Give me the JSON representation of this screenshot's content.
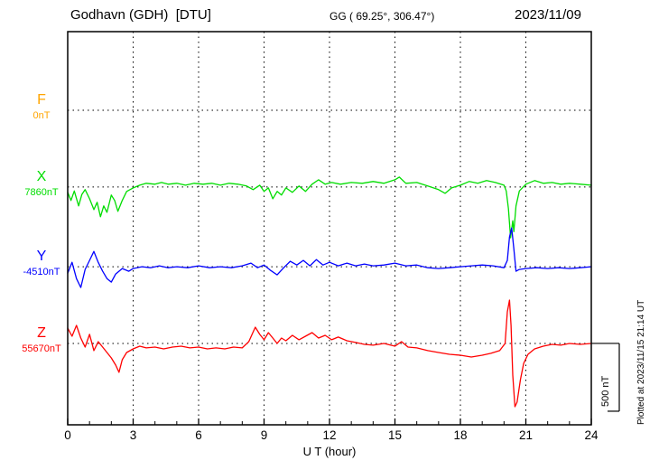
{
  "header": {
    "station": "Godhavn (GDH)  [DTU]",
    "coords": "GG ( 69.25°, 306.47°)",
    "date": "2023/11/09"
  },
  "side_note": "Plotted at 2023/11/15 21:14 UT",
  "chart_data": {
    "type": "line",
    "title": "Godhavn (GDH) [DTU] magnetogram 2023/11/09",
    "xlabel": "U T (hour)",
    "ylabel": "",
    "xlim": [
      0,
      24
    ],
    "xticks": [
      0,
      3,
      6,
      9,
      12,
      15,
      18,
      21,
      24
    ],
    "grid": {
      "vertical_dotted_every_hours": 3,
      "horizontal_dotted": "component baselines"
    },
    "scale_bar": {
      "label": "500 nT",
      "nT": 500
    },
    "axis_color": "#000000",
    "units": "points are [hour UT, offset from baseline in nT]",
    "series": [
      {
        "name": "F",
        "color": "#ffa500",
        "baseline_label": "0nT",
        "baseline_value_nT": 0,
        "baseline_frac": 0.2,
        "points": []
      },
      {
        "name": "X",
        "color": "#00dd00",
        "baseline_label": "7860nT",
        "baseline_value_nT": 7860,
        "baseline_frac": 0.395,
        "points": [
          [
            0,
            -40
          ],
          [
            0.15,
            -100
          ],
          [
            0.3,
            -30
          ],
          [
            0.5,
            -140
          ],
          [
            0.65,
            -55
          ],
          [
            0.8,
            -20
          ],
          [
            1.0,
            -87
          ],
          [
            1.2,
            -167
          ],
          [
            1.35,
            -113
          ],
          [
            1.5,
            -220
          ],
          [
            1.65,
            -140
          ],
          [
            1.8,
            -187
          ],
          [
            2.0,
            -60
          ],
          [
            2.15,
            -100
          ],
          [
            2.3,
            -180
          ],
          [
            2.5,
            -100
          ],
          [
            2.7,
            -33
          ],
          [
            3.0,
            -7
          ],
          [
            3.3,
            13
          ],
          [
            3.6,
            27
          ],
          [
            4.0,
            20
          ],
          [
            4.3,
            33
          ],
          [
            4.6,
            20
          ],
          [
            5.0,
            27
          ],
          [
            5.4,
            13
          ],
          [
            5.8,
            27
          ],
          [
            6.2,
            20
          ],
          [
            6.6,
            27
          ],
          [
            7.0,
            13
          ],
          [
            7.4,
            27
          ],
          [
            7.8,
            20
          ],
          [
            8.2,
            7
          ],
          [
            8.5,
            -20
          ],
          [
            8.8,
            13
          ],
          [
            9.0,
            -33
          ],
          [
            9.2,
            -7
          ],
          [
            9.4,
            -87
          ],
          [
            9.6,
            -33
          ],
          [
            9.8,
            -60
          ],
          [
            10.0,
            -7
          ],
          [
            10.3,
            -40
          ],
          [
            10.6,
            7
          ],
          [
            10.9,
            -33
          ],
          [
            11.2,
            20
          ],
          [
            11.5,
            53
          ],
          [
            11.8,
            20
          ],
          [
            12.1,
            33
          ],
          [
            12.5,
            20
          ],
          [
            13.0,
            33
          ],
          [
            13.5,
            27
          ],
          [
            14.0,
            40
          ],
          [
            14.5,
            27
          ],
          [
            15.0,
            53
          ],
          [
            15.2,
            73
          ],
          [
            15.5,
            27
          ],
          [
            16.0,
            33
          ],
          [
            16.5,
            7
          ],
          [
            17.0,
            -20
          ],
          [
            17.3,
            -47
          ],
          [
            17.6,
            -7
          ],
          [
            18.0,
            13
          ],
          [
            18.4,
            40
          ],
          [
            18.8,
            27
          ],
          [
            19.2,
            47
          ],
          [
            19.6,
            33
          ],
          [
            20.0,
            13
          ],
          [
            20.1,
            -30
          ],
          [
            20.2,
            -160
          ],
          [
            20.3,
            -375
          ],
          [
            20.4,
            -250
          ],
          [
            20.45,
            -330
          ],
          [
            20.55,
            -140
          ],
          [
            20.7,
            -30
          ],
          [
            21.0,
            20
          ],
          [
            21.4,
            47
          ],
          [
            21.8,
            27
          ],
          [
            22.2,
            33
          ],
          [
            22.6,
            20
          ],
          [
            23.0,
            27
          ],
          [
            23.5,
            20
          ],
          [
            24.0,
            13
          ]
        ]
      },
      {
        "name": "Y",
        "color": "#0000ff",
        "baseline_label": "-4510nT",
        "baseline_value_nT": -4510,
        "baseline_frac": 0.598,
        "points": [
          [
            0,
            -47
          ],
          [
            0.2,
            33
          ],
          [
            0.4,
            -87
          ],
          [
            0.6,
            -153
          ],
          [
            0.8,
            -20
          ],
          [
            1.0,
            47
          ],
          [
            1.2,
            113
          ],
          [
            1.4,
            33
          ],
          [
            1.6,
            -33
          ],
          [
            1.8,
            -87
          ],
          [
            2.0,
            -113
          ],
          [
            2.2,
            -53
          ],
          [
            2.5,
            -13
          ],
          [
            2.8,
            -33
          ],
          [
            3.0,
            -13
          ],
          [
            3.4,
            0
          ],
          [
            3.8,
            -7
          ],
          [
            4.2,
            7
          ],
          [
            4.6,
            -7
          ],
          [
            5.0,
            0
          ],
          [
            5.5,
            -7
          ],
          [
            6.0,
            7
          ],
          [
            6.5,
            -7
          ],
          [
            7.0,
            0
          ],
          [
            7.5,
            -7
          ],
          [
            8.0,
            7
          ],
          [
            8.4,
            27
          ],
          [
            8.7,
            -7
          ],
          [
            9.0,
            13
          ],
          [
            9.3,
            -27
          ],
          [
            9.6,
            -60
          ],
          [
            9.9,
            -7
          ],
          [
            10.2,
            40
          ],
          [
            10.5,
            13
          ],
          [
            10.8,
            47
          ],
          [
            11.1,
            7
          ],
          [
            11.4,
            53
          ],
          [
            11.7,
            13
          ],
          [
            12.0,
            33
          ],
          [
            12.4,
            7
          ],
          [
            12.8,
            27
          ],
          [
            13.2,
            7
          ],
          [
            13.6,
            20
          ],
          [
            14.0,
            7
          ],
          [
            14.5,
            13
          ],
          [
            15.0,
            27
          ],
          [
            15.5,
            7
          ],
          [
            16.0,
            13
          ],
          [
            16.5,
            -7
          ],
          [
            17.0,
            -13
          ],
          [
            17.5,
            -7
          ],
          [
            18.0,
            0
          ],
          [
            18.5,
            7
          ],
          [
            19.0,
            13
          ],
          [
            19.5,
            7
          ],
          [
            20.0,
            -7
          ],
          [
            20.15,
            47
          ],
          [
            20.25,
            220
          ],
          [
            20.35,
            287
          ],
          [
            20.45,
            133
          ],
          [
            20.55,
            -33
          ],
          [
            20.7,
            -20
          ],
          [
            21.0,
            -13
          ],
          [
            21.5,
            -7
          ],
          [
            22.0,
            -13
          ],
          [
            22.5,
            -7
          ],
          [
            23.0,
            -13
          ],
          [
            23.5,
            -7
          ],
          [
            24.0,
            0
          ]
        ]
      },
      {
        "name": "Z",
        "color": "#ff0000",
        "baseline_label": "55670nT",
        "baseline_value_nT": 55670,
        "baseline_frac": 0.793,
        "points": [
          [
            0,
            113
          ],
          [
            0.2,
            53
          ],
          [
            0.4,
            133
          ],
          [
            0.6,
            40
          ],
          [
            0.8,
            -27
          ],
          [
            1.0,
            67
          ],
          [
            1.2,
            -53
          ],
          [
            1.4,
            13
          ],
          [
            1.6,
            -27
          ],
          [
            1.8,
            -67
          ],
          [
            2.0,
            -107
          ],
          [
            2.2,
            -160
          ],
          [
            2.35,
            -213
          ],
          [
            2.5,
            -120
          ],
          [
            2.7,
            -67
          ],
          [
            3.0,
            -40
          ],
          [
            3.3,
            -20
          ],
          [
            3.6,
            -33
          ],
          [
            4.0,
            -27
          ],
          [
            4.4,
            -40
          ],
          [
            4.8,
            -27
          ],
          [
            5.2,
            -20
          ],
          [
            5.6,
            -33
          ],
          [
            6.0,
            -27
          ],
          [
            6.4,
            -40
          ],
          [
            6.8,
            -33
          ],
          [
            7.2,
            -40
          ],
          [
            7.6,
            -27
          ],
          [
            8.0,
            -33
          ],
          [
            8.3,
            13
          ],
          [
            8.6,
            120
          ],
          [
            8.8,
            67
          ],
          [
            9.0,
            27
          ],
          [
            9.2,
            80
          ],
          [
            9.4,
            40
          ],
          [
            9.6,
            0
          ],
          [
            9.8,
            40
          ],
          [
            10.0,
            20
          ],
          [
            10.3,
            60
          ],
          [
            10.6,
            27
          ],
          [
            10.9,
            53
          ],
          [
            11.2,
            80
          ],
          [
            11.5,
            40
          ],
          [
            11.8,
            60
          ],
          [
            12.1,
            27
          ],
          [
            12.4,
            47
          ],
          [
            12.8,
            20
          ],
          [
            13.2,
            7
          ],
          [
            13.6,
            -7
          ],
          [
            14.0,
            -13
          ],
          [
            14.5,
            0
          ],
          [
            15.0,
            -20
          ],
          [
            15.3,
            13
          ],
          [
            15.6,
            -27
          ],
          [
            16.0,
            -33
          ],
          [
            16.5,
            -53
          ],
          [
            17.0,
            -67
          ],
          [
            17.5,
            -80
          ],
          [
            18.0,
            -87
          ],
          [
            18.5,
            -100
          ],
          [
            19.0,
            -87
          ],
          [
            19.4,
            -73
          ],
          [
            19.8,
            -53
          ],
          [
            20.05,
            0
          ],
          [
            20.15,
            233
          ],
          [
            20.25,
            320
          ],
          [
            20.32,
            133
          ],
          [
            20.4,
            -233
          ],
          [
            20.5,
            -467
          ],
          [
            20.6,
            -433
          ],
          [
            20.75,
            -267
          ],
          [
            20.9,
            -147
          ],
          [
            21.1,
            -80
          ],
          [
            21.4,
            -40
          ],
          [
            21.8,
            -20
          ],
          [
            22.2,
            -7
          ],
          [
            22.6,
            -13
          ],
          [
            23.0,
            0
          ],
          [
            23.5,
            -7
          ],
          [
            24.0,
            0
          ]
        ]
      }
    ]
  }
}
